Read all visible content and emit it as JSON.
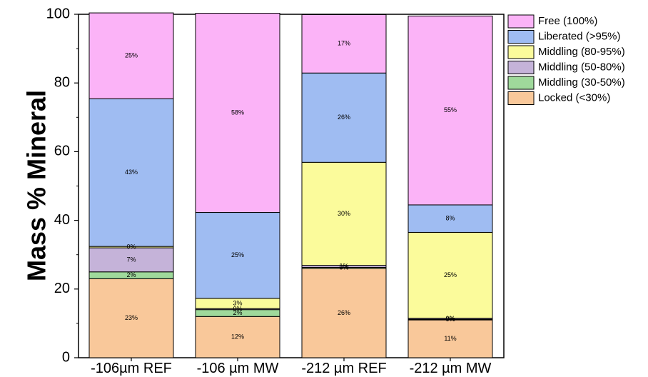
{
  "chart_data": {
    "type": "bar",
    "stacked": true,
    "categories": [
      "-106µm REF",
      "-106 µm MW",
      "-212 µm REF",
      "-212 µm MW"
    ],
    "series": [
      {
        "name": "Locked (<30%)",
        "color": "#f9c89a",
        "values": [
          23,
          12,
          26,
          11
        ],
        "labels": [
          "23%",
          "12%",
          "26%",
          "11%"
        ]
      },
      {
        "name": "Middling (30-50%)",
        "color": "#9fd99b",
        "values": [
          2,
          2,
          0.3,
          0.2
        ],
        "labels": [
          "2%",
          "2%",
          "0%",
          "0%"
        ]
      },
      {
        "name": "Middling (50-80%)",
        "color": "#c5b3d9",
        "values": [
          7,
          0.3,
          0.6,
          0.3
        ],
        "labels": [
          "7%",
          "0%",
          "1%",
          "0%"
        ]
      },
      {
        "name": "Middling (80-95%)",
        "color": "#fbfb9b",
        "values": [
          0.4,
          3,
          30,
          25
        ],
        "labels": [
          "0%",
          "3%",
          "30%",
          "25%"
        ]
      },
      {
        "name": "Liberated (>95%)",
        "color": "#9fbcf2",
        "values": [
          43,
          25,
          26,
          8
        ],
        "labels": [
          "43%",
          "25%",
          "26%",
          "8%"
        ]
      },
      {
        "name": "Free (100%)",
        "color": "#fbb3f7",
        "values": [
          25,
          58,
          17,
          55
        ],
        "labels": [
          "25%",
          "58%",
          "17%",
          "55%"
        ]
      }
    ],
    "legend_order": [
      "Free (100%)",
      "Liberated (>95%)",
      "Middling (80-95%)",
      "Middling (50-80%)",
      "Middling (30-50%)",
      "Locked (<30%)"
    ],
    "ylabel": "Mass % Mineral",
    "xlabel": "",
    "title": "",
    "ylim": [
      0,
      100
    ],
    "yticks": [
      0,
      20,
      40,
      60,
      80,
      100
    ],
    "grid": false,
    "legend_position": "top-right"
  }
}
